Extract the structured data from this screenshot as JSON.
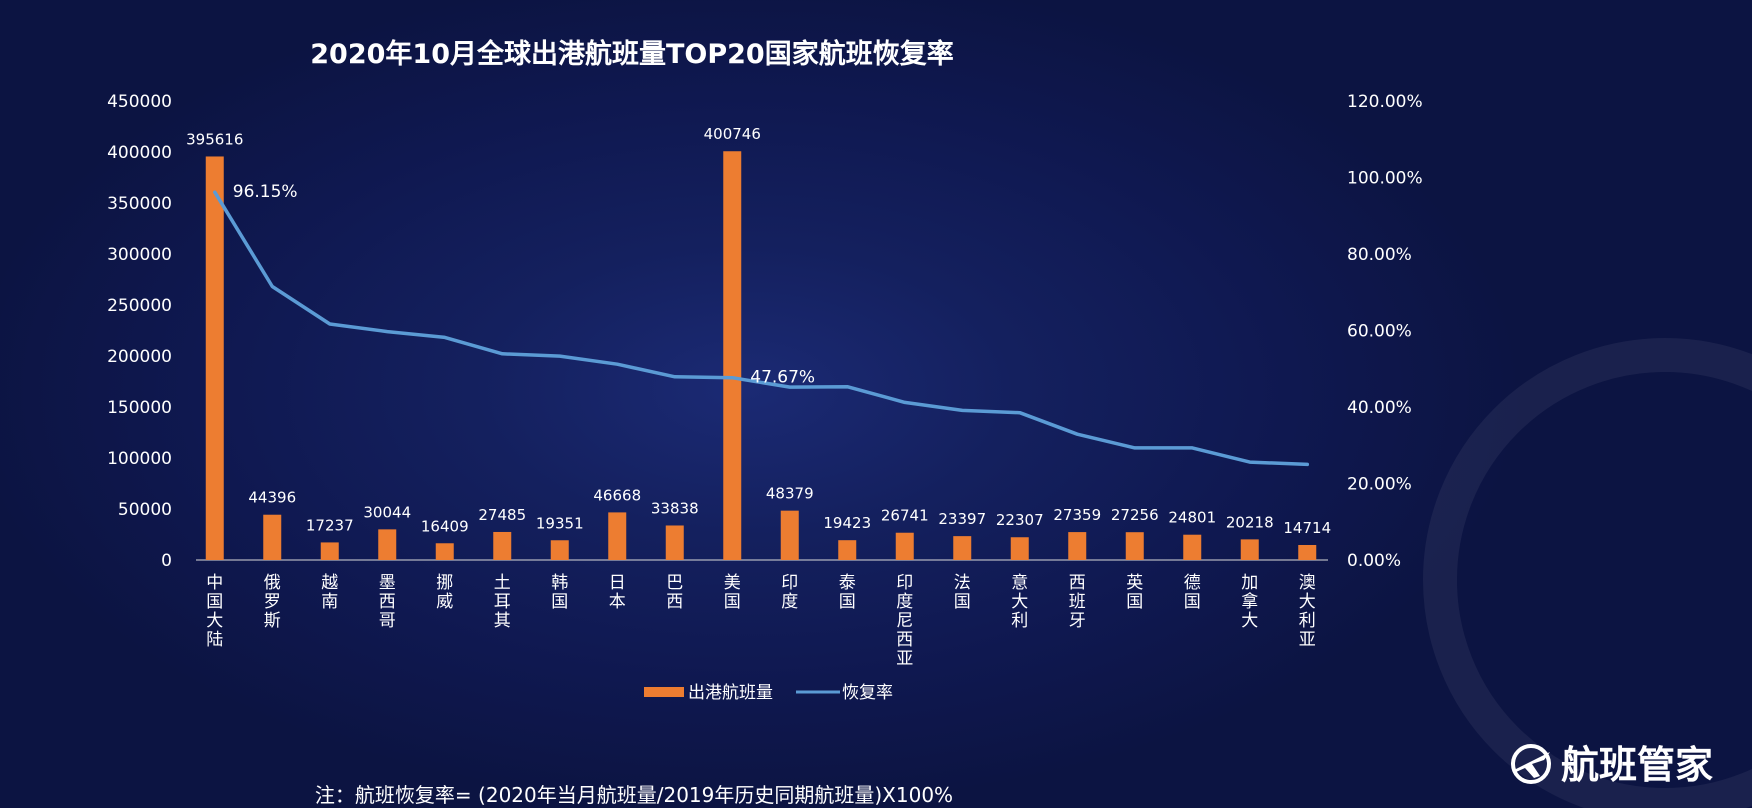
{
  "chart_data": {
    "type": "bar",
    "title": "2020年10月全球出港航班量TOP20国家航班恢复率",
    "categories": [
      "中国大陆",
      "俄罗斯",
      "越南",
      "墨西哥",
      "挪威",
      "土耳其",
      "韩国",
      "日本",
      "巴西",
      "美国",
      "印度",
      "泰国",
      "印度尼西亚",
      "法国",
      "意大利",
      "西班牙",
      "英国",
      "德国",
      "加拿大",
      "澳大利亚"
    ],
    "series": [
      {
        "name": "出港航班量",
        "type": "bar",
        "axis": "left",
        "color": "#ed7d31",
        "values": [
          395616,
          44396,
          17237,
          30044,
          16409,
          27485,
          19351,
          46668,
          33838,
          400746,
          48379,
          19423,
          26741,
          23397,
          22307,
          27359,
          27256,
          24801,
          20218,
          14714
        ]
      },
      {
        "name": "恢复率",
        "type": "line",
        "axis": "right",
        "color": "#5b9bd5",
        "values": [
          96.15,
          71.5,
          61.7,
          59.7,
          58.2,
          53.9,
          53.3,
          51.2,
          47.9,
          47.67,
          45.2,
          45.3,
          41.2,
          39.1,
          38.5,
          32.9,
          29.3,
          29.3,
          25.6,
          25.0
        ],
        "labeled_points": [
          {
            "index": 0,
            "text": "96.15%"
          },
          {
            "index": 9,
            "text": "47.67%"
          }
        ]
      }
    ],
    "y_left": {
      "min": 0,
      "max": 450000,
      "step": 50000
    },
    "y_right": {
      "min": 0,
      "max": 120,
      "step": 20,
      "format": "0.00%"
    },
    "grid": false,
    "legend_position": "bottom"
  },
  "footnote": "注：航班恢复率= (2020年当月航班量/2019年历史同期航班量)X100%",
  "brand": {
    "name": "航班管家",
    "icon": "plane-logo-icon"
  },
  "colors": {
    "background": "#101a52",
    "bar": "#ed7d31",
    "line": "#5b9bd5",
    "axis": "#ffffff"
  }
}
